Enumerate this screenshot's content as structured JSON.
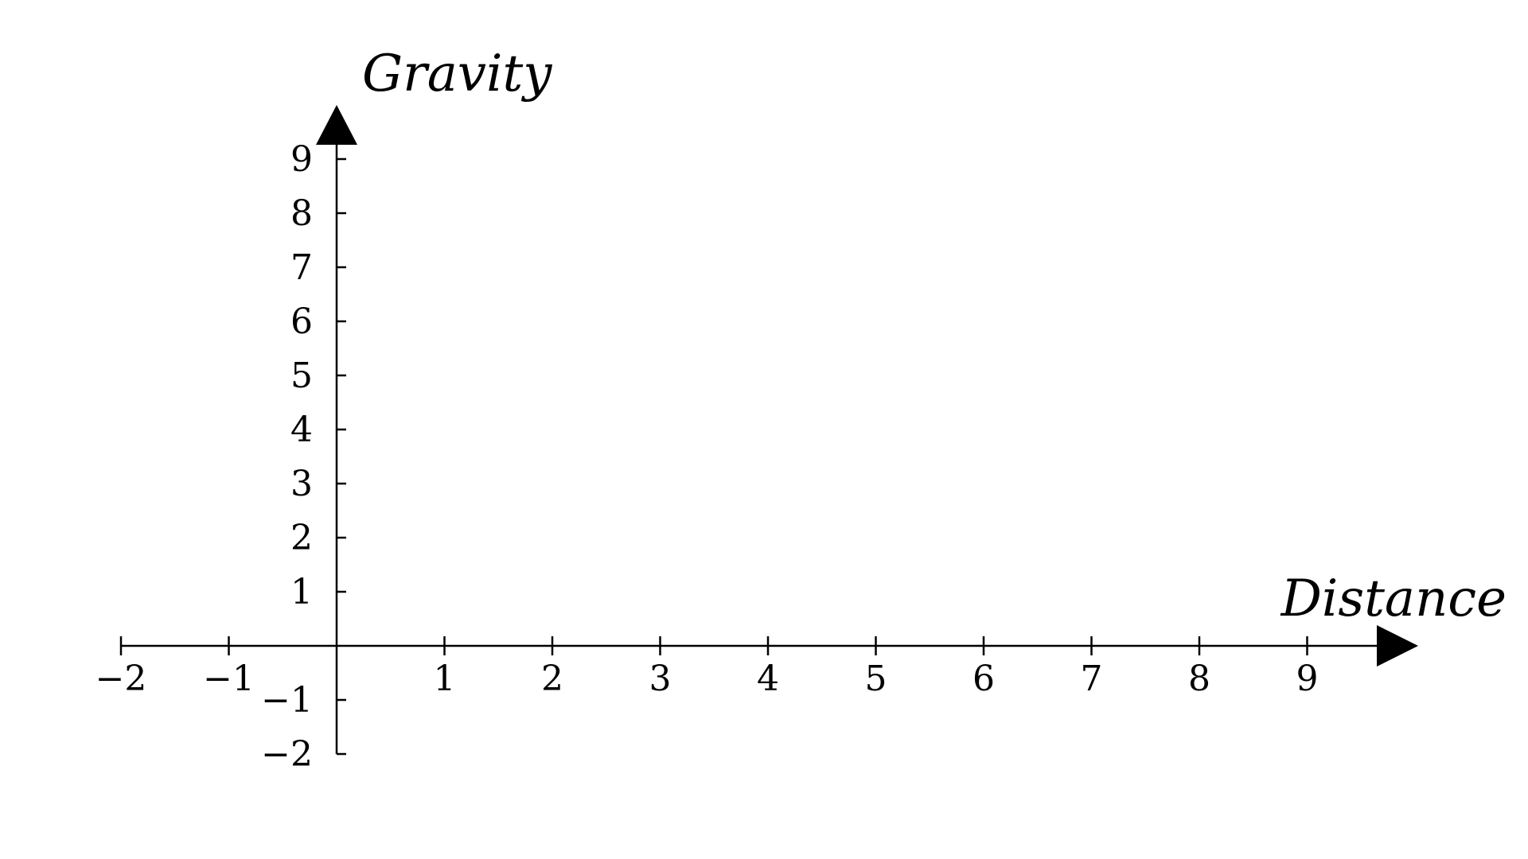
{
  "chart_data": {
    "type": "scatter",
    "title": "",
    "xlabel": "Distance",
    "ylabel": "Gravity",
    "xlim": [
      -2,
      9
    ],
    "ylim": [
      -2,
      9
    ],
    "x_ticks": [
      "−2",
      "−1",
      "1",
      "2",
      "3",
      "4",
      "5",
      "6",
      "7",
      "8",
      "9"
    ],
    "y_ticks": [
      "−2",
      "−1",
      "1",
      "2",
      "3",
      "4",
      "5",
      "6",
      "7",
      "8",
      "9"
    ],
    "x_tick_values": [
      -2,
      -1,
      1,
      2,
      3,
      4,
      5,
      6,
      7,
      8,
      9
    ],
    "y_tick_values": [
      -2,
      -1,
      1,
      2,
      3,
      4,
      5,
      6,
      7,
      8,
      9
    ],
    "series": [],
    "grid": false,
    "legend": "none",
    "colors": {
      "axis": "#000000",
      "background": "#ffffff"
    }
  }
}
